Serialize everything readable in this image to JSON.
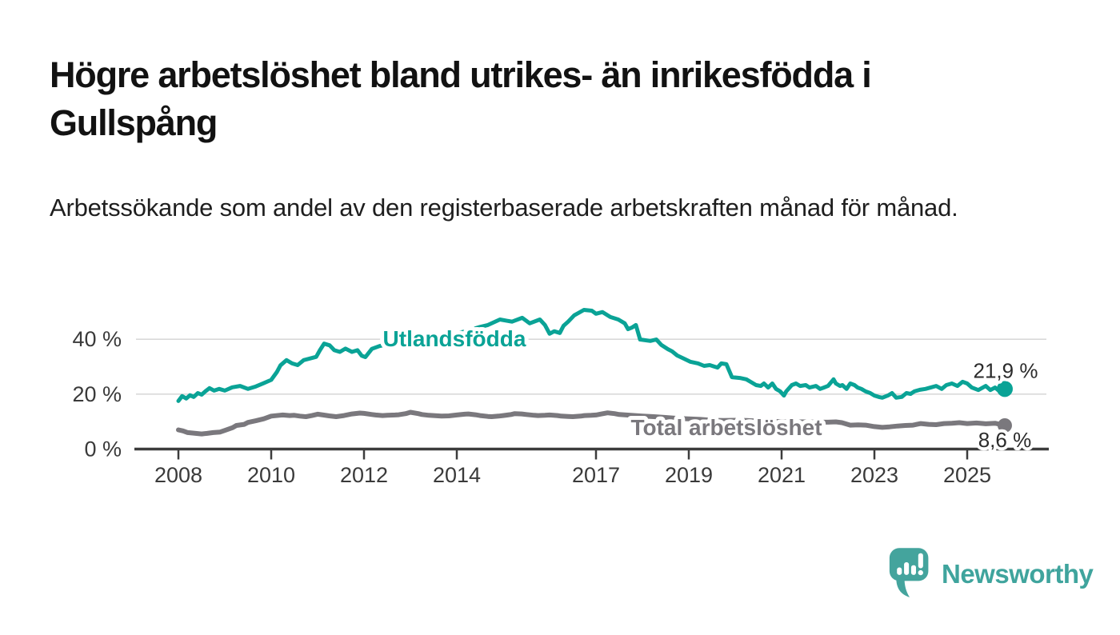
{
  "title": "Högre arbetslöshet bland utrikes- än inrikesfödda i Gullspång",
  "subtitle": "Arbetssökande som andel av den registerbaserade arbetskraften månad för månad.",
  "branding": {
    "logo_text": "Newsworthy",
    "logo_icon": "bar-chart-speech-bubble-icon"
  },
  "colors": {
    "teal_series": "#0aa396",
    "gray_series": "#7a787d",
    "grid": "#d9d9d9",
    "axis": "#3c3c3c",
    "tick_text": "#3a3a3a",
    "value_text": "#2b2b2b",
    "logo_teal": "#44a49d",
    "background": "#ffffff"
  },
  "chart_data": {
    "type": "line",
    "title": "Högre arbetslöshet bland utrikes- än inrikesfödda i Gullspång",
    "subtitle": "Arbetssökande som andel av den registerbaserade arbetskraften månad för månad.",
    "xlabel": "",
    "ylabel": "",
    "grid": "horizontal",
    "legend_position": "inline-labels",
    "ylim": [
      0,
      55
    ],
    "y_ticks": [
      {
        "value": 0,
        "label": "0 %"
      },
      {
        "value": 20,
        "label": "20 %"
      },
      {
        "value": 40,
        "label": "40 %"
      }
    ],
    "x_ticks": [
      {
        "value": 2008,
        "label": "2008"
      },
      {
        "value": 2010,
        "label": "2010"
      },
      {
        "value": 2012,
        "label": "2012"
      },
      {
        "value": 2014,
        "label": "2014"
      },
      {
        "value": 2017,
        "label": "2017"
      },
      {
        "value": 2019,
        "label": "2019"
      },
      {
        "value": 2021,
        "label": "2021"
      },
      {
        "value": 2023,
        "label": "2023"
      },
      {
        "value": 2025,
        "label": "2025"
      }
    ],
    "series": [
      {
        "name": "Utlandsfödda",
        "color": "#0aa396",
        "end_value": 21.9,
        "end_label": "21,9 %",
        "points": [
          [
            2008.0,
            17.5
          ],
          [
            2008.08,
            19.3
          ],
          [
            2008.17,
            18.4
          ],
          [
            2008.25,
            19.6
          ],
          [
            2008.33,
            19.0
          ],
          [
            2008.42,
            20.4
          ],
          [
            2008.5,
            19.8
          ],
          [
            2008.58,
            21.0
          ],
          [
            2008.67,
            22.2
          ],
          [
            2008.77,
            21.3
          ],
          [
            2008.88,
            21.9
          ],
          [
            2009.0,
            21.3
          ],
          [
            2009.16,
            22.5
          ],
          [
            2009.33,
            23.0
          ],
          [
            2009.5,
            21.9
          ],
          [
            2009.67,
            22.8
          ],
          [
            2009.84,
            24.0
          ],
          [
            2010.0,
            25.2
          ],
          [
            2010.12,
            28.0
          ],
          [
            2010.2,
            30.5
          ],
          [
            2010.33,
            32.4
          ],
          [
            2010.45,
            31.2
          ],
          [
            2010.57,
            30.6
          ],
          [
            2010.7,
            32.4
          ],
          [
            2010.84,
            33.0
          ],
          [
            2010.97,
            33.6
          ],
          [
            2011.05,
            36.0
          ],
          [
            2011.14,
            38.4
          ],
          [
            2011.26,
            37.8
          ],
          [
            2011.36,
            36.0
          ],
          [
            2011.48,
            35.4
          ],
          [
            2011.6,
            36.6
          ],
          [
            2011.74,
            35.4
          ],
          [
            2011.86,
            36.0
          ],
          [
            2011.95,
            34.0
          ],
          [
            2012.03,
            33.5
          ],
          [
            2012.17,
            36.5
          ],
          [
            2012.33,
            37.5
          ],
          [
            2012.5,
            38.2
          ],
          [
            2012.67,
            39.0
          ],
          [
            2012.83,
            39.6
          ],
          [
            2013.0,
            40.3
          ],
          [
            2013.17,
            40.8
          ],
          [
            2013.33,
            41.2
          ],
          [
            2013.5,
            41.6
          ],
          [
            2013.67,
            41.2
          ],
          [
            2013.83,
            41.8
          ],
          [
            2014.0,
            42.2
          ],
          [
            2014.17,
            42.8
          ],
          [
            2014.33,
            43.6
          ],
          [
            2014.5,
            44.5
          ],
          [
            2014.67,
            45.2
          ],
          [
            2014.93,
            47.2
          ],
          [
            2015.19,
            46.4
          ],
          [
            2015.41,
            47.8
          ],
          [
            2015.57,
            45.8
          ],
          [
            2015.79,
            47.2
          ],
          [
            2015.9,
            45.2
          ],
          [
            2016.0,
            42.0
          ],
          [
            2016.1,
            42.9
          ],
          [
            2016.22,
            42.3
          ],
          [
            2016.3,
            44.9
          ],
          [
            2016.4,
            46.4
          ],
          [
            2016.53,
            48.7
          ],
          [
            2016.74,
            50.7
          ],
          [
            2016.91,
            50.4
          ],
          [
            2017.0,
            49.3
          ],
          [
            2017.14,
            49.9
          ],
          [
            2017.31,
            48.1
          ],
          [
            2017.48,
            47.2
          ],
          [
            2017.62,
            45.8
          ],
          [
            2017.69,
            43.7
          ],
          [
            2017.78,
            44.3
          ],
          [
            2017.86,
            45.2
          ],
          [
            2017.95,
            39.9
          ],
          [
            2018.17,
            39.4
          ],
          [
            2018.3,
            39.9
          ],
          [
            2018.41,
            37.9
          ],
          [
            2018.55,
            36.4
          ],
          [
            2018.64,
            35.6
          ],
          [
            2018.75,
            34.1
          ],
          [
            2018.86,
            33.2
          ],
          [
            2019.03,
            31.8
          ],
          [
            2019.2,
            31.2
          ],
          [
            2019.33,
            30.3
          ],
          [
            2019.45,
            30.6
          ],
          [
            2019.62,
            29.7
          ],
          [
            2019.7,
            31.2
          ],
          [
            2019.81,
            30.9
          ],
          [
            2019.93,
            26.2
          ],
          [
            2020.1,
            25.9
          ],
          [
            2020.24,
            25.4
          ],
          [
            2020.33,
            24.5
          ],
          [
            2020.45,
            23.3
          ],
          [
            2020.55,
            23.0
          ],
          [
            2020.62,
            23.9
          ],
          [
            2020.71,
            22.4
          ],
          [
            2020.8,
            23.9
          ],
          [
            2020.88,
            21.9
          ],
          [
            2020.97,
            21.0
          ],
          [
            2021.05,
            19.5
          ],
          [
            2021.1,
            21.0
          ],
          [
            2021.22,
            23.3
          ],
          [
            2021.31,
            23.9
          ],
          [
            2021.4,
            23.0
          ],
          [
            2021.52,
            23.3
          ],
          [
            2021.6,
            22.4
          ],
          [
            2021.74,
            23.0
          ],
          [
            2021.83,
            21.9
          ],
          [
            2021.91,
            22.4
          ],
          [
            2022.0,
            23.0
          ],
          [
            2022.12,
            25.4
          ],
          [
            2022.17,
            23.9
          ],
          [
            2022.26,
            23.0
          ],
          [
            2022.31,
            23.3
          ],
          [
            2022.4,
            21.9
          ],
          [
            2022.48,
            23.9
          ],
          [
            2022.57,
            23.3
          ],
          [
            2022.64,
            22.4
          ],
          [
            2022.72,
            21.9
          ],
          [
            2022.81,
            21.0
          ],
          [
            2022.91,
            20.4
          ],
          [
            2023.0,
            19.5
          ],
          [
            2023.09,
            19.0
          ],
          [
            2023.17,
            18.7
          ],
          [
            2023.29,
            19.5
          ],
          [
            2023.38,
            20.4
          ],
          [
            2023.47,
            18.7
          ],
          [
            2023.59,
            19.0
          ],
          [
            2023.69,
            20.4
          ],
          [
            2023.78,
            20.1
          ],
          [
            2023.86,
            21.0
          ],
          [
            2023.98,
            21.6
          ],
          [
            2024.1,
            21.9
          ],
          [
            2024.21,
            22.4
          ],
          [
            2024.33,
            23.0
          ],
          [
            2024.45,
            21.9
          ],
          [
            2024.55,
            23.3
          ],
          [
            2024.67,
            23.9
          ],
          [
            2024.79,
            23.0
          ],
          [
            2024.9,
            24.5
          ],
          [
            2025.0,
            23.9
          ],
          [
            2025.1,
            22.4
          ],
          [
            2025.24,
            21.5
          ],
          [
            2025.4,
            23.0
          ],
          [
            2025.5,
            21.5
          ],
          [
            2025.6,
            22.4
          ],
          [
            2025.7,
            21.0
          ],
          [
            2025.81,
            21.9
          ]
        ]
      },
      {
        "name": "Total arbetslöshet",
        "color": "#7a787d",
        "end_value": 8.6,
        "end_label": "8,6 %",
        "points": [
          [
            2008.0,
            7.0
          ],
          [
            2008.1,
            6.6
          ],
          [
            2008.2,
            6.0
          ],
          [
            2008.33,
            5.8
          ],
          [
            2008.5,
            5.5
          ],
          [
            2008.62,
            5.7
          ],
          [
            2008.75,
            6.0
          ],
          [
            2008.9,
            6.2
          ],
          [
            2009.0,
            6.8
          ],
          [
            2009.17,
            7.8
          ],
          [
            2009.25,
            8.6
          ],
          [
            2009.42,
            9.0
          ],
          [
            2009.5,
            9.7
          ],
          [
            2009.67,
            10.3
          ],
          [
            2009.84,
            11.0
          ],
          [
            2010.0,
            12.0
          ],
          [
            2010.17,
            12.3
          ],
          [
            2010.25,
            12.4
          ],
          [
            2010.4,
            12.2
          ],
          [
            2010.5,
            12.3
          ],
          [
            2010.62,
            12.0
          ],
          [
            2010.75,
            11.8
          ],
          [
            2010.88,
            12.2
          ],
          [
            2011.0,
            12.7
          ],
          [
            2011.12,
            12.4
          ],
          [
            2011.25,
            12.1
          ],
          [
            2011.4,
            11.8
          ],
          [
            2011.57,
            12.2
          ],
          [
            2011.74,
            12.8
          ],
          [
            2011.91,
            13.1
          ],
          [
            2012.0,
            13.0
          ],
          [
            2012.17,
            12.6
          ],
          [
            2012.25,
            12.4
          ],
          [
            2012.4,
            12.2
          ],
          [
            2012.5,
            12.3
          ],
          [
            2012.67,
            12.4
          ],
          [
            2012.75,
            12.5
          ],
          [
            2012.9,
            12.9
          ],
          [
            2013.0,
            13.4
          ],
          [
            2013.17,
            12.9
          ],
          [
            2013.25,
            12.6
          ],
          [
            2013.4,
            12.3
          ],
          [
            2013.5,
            12.2
          ],
          [
            2013.67,
            12.0
          ],
          [
            2013.83,
            12.1
          ],
          [
            2014.0,
            12.4
          ],
          [
            2014.17,
            12.7
          ],
          [
            2014.25,
            12.8
          ],
          [
            2014.4,
            12.5
          ],
          [
            2014.5,
            12.2
          ],
          [
            2014.67,
            11.9
          ],
          [
            2014.75,
            11.8
          ],
          [
            2014.9,
            12.0
          ],
          [
            2015.0,
            12.2
          ],
          [
            2015.17,
            12.6
          ],
          [
            2015.25,
            12.9
          ],
          [
            2015.4,
            12.8
          ],
          [
            2015.5,
            12.6
          ],
          [
            2015.67,
            12.3
          ],
          [
            2015.75,
            12.2
          ],
          [
            2015.9,
            12.3
          ],
          [
            2016.0,
            12.4
          ],
          [
            2016.17,
            12.2
          ],
          [
            2016.25,
            12.0
          ],
          [
            2016.4,
            11.9
          ],
          [
            2016.5,
            11.8
          ],
          [
            2016.67,
            12.0
          ],
          [
            2016.75,
            12.2
          ],
          [
            2016.9,
            12.3
          ],
          [
            2017.0,
            12.4
          ],
          [
            2017.12,
            12.8
          ],
          [
            2017.25,
            13.2
          ],
          [
            2017.4,
            12.9
          ],
          [
            2017.5,
            12.6
          ],
          [
            2017.75,
            12.3
          ],
          [
            2018.0,
            12.0
          ],
          [
            2018.25,
            11.8
          ],
          [
            2018.5,
            11.5
          ],
          [
            2018.75,
            11.2
          ],
          [
            2019.0,
            11.0
          ],
          [
            2019.25,
            10.8
          ],
          [
            2019.5,
            10.5
          ],
          [
            2019.75,
            10.4
          ],
          [
            2020.0,
            10.5
          ],
          [
            2020.25,
            10.4
          ],
          [
            2020.5,
            10.2
          ],
          [
            2020.75,
            10.1
          ],
          [
            2021.0,
            10.0
          ],
          [
            2021.25,
            9.9
          ],
          [
            2021.5,
            9.9
          ],
          [
            2021.75,
            9.8
          ],
          [
            2022.0,
            9.8
          ],
          [
            2022.17,
            9.9
          ],
          [
            2022.3,
            9.6
          ],
          [
            2022.48,
            8.7
          ],
          [
            2022.65,
            8.8
          ],
          [
            2022.81,
            8.7
          ],
          [
            2023.0,
            8.2
          ],
          [
            2023.17,
            7.9
          ],
          [
            2023.33,
            8.1
          ],
          [
            2023.5,
            8.4
          ],
          [
            2023.67,
            8.6
          ],
          [
            2023.83,
            8.7
          ],
          [
            2024.0,
            9.3
          ],
          [
            2024.17,
            9.0
          ],
          [
            2024.33,
            8.9
          ],
          [
            2024.5,
            9.3
          ],
          [
            2024.67,
            9.4
          ],
          [
            2024.83,
            9.6
          ],
          [
            2025.0,
            9.3
          ],
          [
            2025.2,
            9.5
          ],
          [
            2025.4,
            9.2
          ],
          [
            2025.6,
            9.4
          ],
          [
            2025.81,
            8.6
          ]
        ]
      }
    ]
  }
}
